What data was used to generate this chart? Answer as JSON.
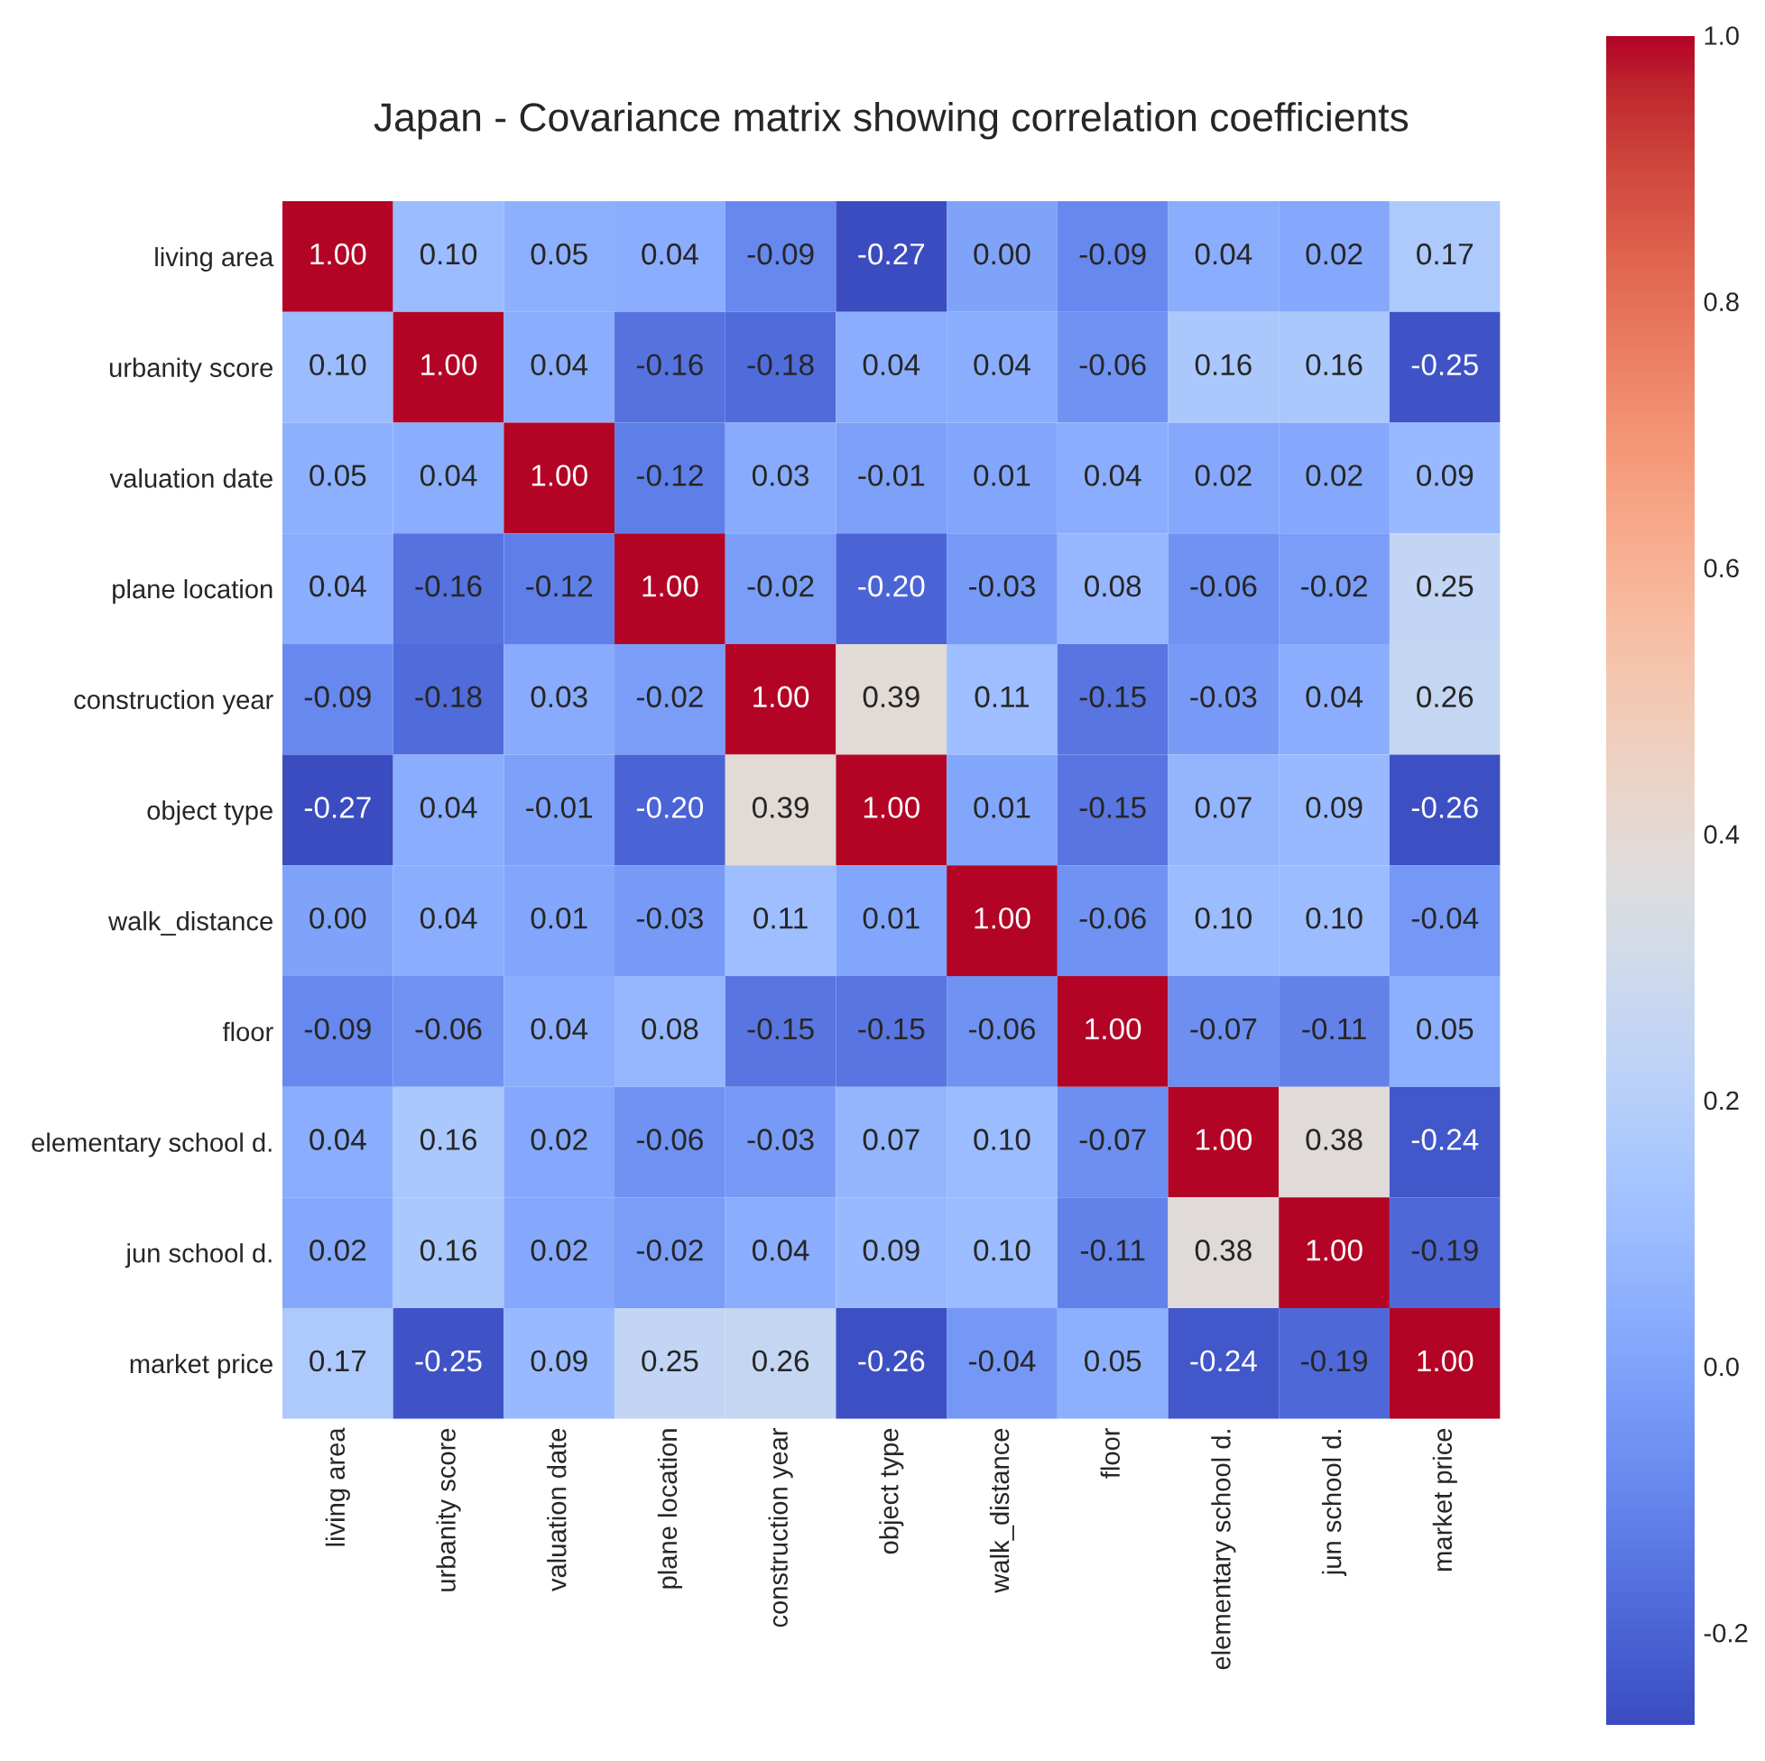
{
  "chart_data": {
    "type": "heatmap",
    "title": "Japan - Covariance matrix showing correlation coefficients",
    "categories": [
      "living area",
      "urbanity score",
      "valuation date",
      "plane location",
      "construction year",
      "object type",
      "walk_distance",
      "floor",
      "elementary school d.",
      "jun school d.",
      "market price"
    ],
    "y_categories": [
      "living area",
      "urbanity score",
      "valuation date",
      "plane location",
      "construction year",
      "object type",
      "walk_distance",
      "floor",
      "elementary school d.",
      "jun school d.",
      "market price"
    ],
    "cells": [
      [
        1.0,
        0.1,
        0.05,
        0.04,
        -0.09,
        -0.27,
        0.0,
        -0.09,
        0.04,
        0.02,
        0.17
      ],
      [
        0.1,
        1.0,
        0.04,
        -0.16,
        -0.18,
        0.04,
        0.04,
        -0.06,
        0.16,
        0.16,
        -0.25
      ],
      [
        0.05,
        0.04,
        1.0,
        -0.12,
        0.03,
        -0.01,
        0.01,
        0.04,
        0.02,
        0.02,
        0.09
      ],
      [
        0.04,
        -0.16,
        -0.12,
        1.0,
        -0.02,
        -0.2,
        -0.03,
        0.08,
        -0.06,
        -0.02,
        0.25
      ],
      [
        -0.09,
        -0.18,
        0.03,
        -0.02,
        1.0,
        0.39,
        0.11,
        -0.15,
        -0.03,
        0.04,
        0.26
      ],
      [
        -0.27,
        0.04,
        -0.01,
        -0.2,
        0.39,
        1.0,
        0.01,
        -0.15,
        0.07,
        0.09,
        -0.26
      ],
      [
        0.0,
        0.04,
        0.01,
        -0.03,
        0.11,
        0.01,
        1.0,
        -0.06,
        0.1,
        0.1,
        -0.04
      ],
      [
        -0.09,
        -0.06,
        0.04,
        0.08,
        -0.15,
        -0.15,
        -0.06,
        1.0,
        -0.07,
        -0.11,
        0.05
      ],
      [
        0.04,
        0.16,
        0.02,
        -0.06,
        -0.03,
        0.07,
        0.1,
        -0.07,
        1.0,
        0.38,
        -0.24
      ],
      [
        0.02,
        0.16,
        0.02,
        -0.02,
        0.04,
        0.09,
        0.1,
        -0.11,
        0.38,
        1.0,
        -0.19
      ],
      [
        0.17,
        -0.25,
        0.09,
        0.25,
        0.26,
        -0.26,
        -0.04,
        0.05,
        -0.24,
        -0.19,
        1.0
      ]
    ],
    "cell_labels": [
      [
        "1.00",
        "0.10",
        "0.05",
        "0.04",
        "-0.09",
        "-0.27",
        "0.00",
        "-0.09",
        "0.04",
        "0.02",
        "0.17"
      ],
      [
        "0.10",
        "1.00",
        "0.04",
        "-0.16",
        "-0.18",
        "0.04",
        "0.04",
        "-0.06",
        "0.16",
        "0.16",
        "-0.25"
      ],
      [
        "0.05",
        "0.04",
        "1.00",
        "-0.12",
        "0.03",
        "-0.01",
        "0.01",
        "0.04",
        "0.02",
        "0.02",
        "0.09"
      ],
      [
        "0.04",
        "-0.16",
        "-0.12",
        "1.00",
        "-0.02",
        "-0.20",
        "-0.03",
        "0.08",
        "-0.06",
        "-0.02",
        "0.25"
      ],
      [
        "-0.09",
        "-0.18",
        "0.03",
        "-0.02",
        "1.00",
        "0.39",
        "0.11",
        "-0.15",
        "-0.03",
        "0.04",
        "0.26"
      ],
      [
        "-0.27",
        "0.04",
        "-0.01",
        "-0.20",
        "0.39",
        "1.00",
        "0.01",
        "-0.15",
        "0.07",
        "0.09",
        "-0.26"
      ],
      [
        "0.00",
        "0.04",
        "0.01",
        "-0.03",
        "0.11",
        "0.01",
        "1.00",
        "-0.06",
        "0.10",
        "0.10",
        "-0.04"
      ],
      [
        "-0.09",
        "-0.06",
        "0.04",
        "0.08",
        "-0.15",
        "-0.15",
        "-0.06",
        "1.00",
        "-0.07",
        "-0.11",
        "0.05"
      ],
      [
        "0.04",
        "0.16",
        "0.02",
        "-0.06",
        "-0.03",
        "0.07",
        "0.10",
        "-0.07",
        "1.00",
        "0.38",
        "-0.24"
      ],
      [
        "0.02",
        "0.16",
        "0.02",
        "-0.02",
        "0.04",
        "0.09",
        "0.10",
        "-0.11",
        "0.38",
        "1.00",
        "-0.19"
      ],
      [
        "0.17",
        "-0.25",
        "0.09",
        "0.25",
        "0.26",
        "-0.26",
        "-0.04",
        "0.05",
        "-0.24",
        "-0.19",
        "1.00"
      ]
    ],
    "clim": [
      -0.27,
      1.0
    ],
    "cticks": [
      -0.2,
      {
        "value": 0.0,
        "label": "0.0"
      },
      0.2,
      0.4,
      0.6,
      0.8,
      {
        "value": 1.0,
        "label": "1.0"
      }
    ],
    "grid": false
  }
}
